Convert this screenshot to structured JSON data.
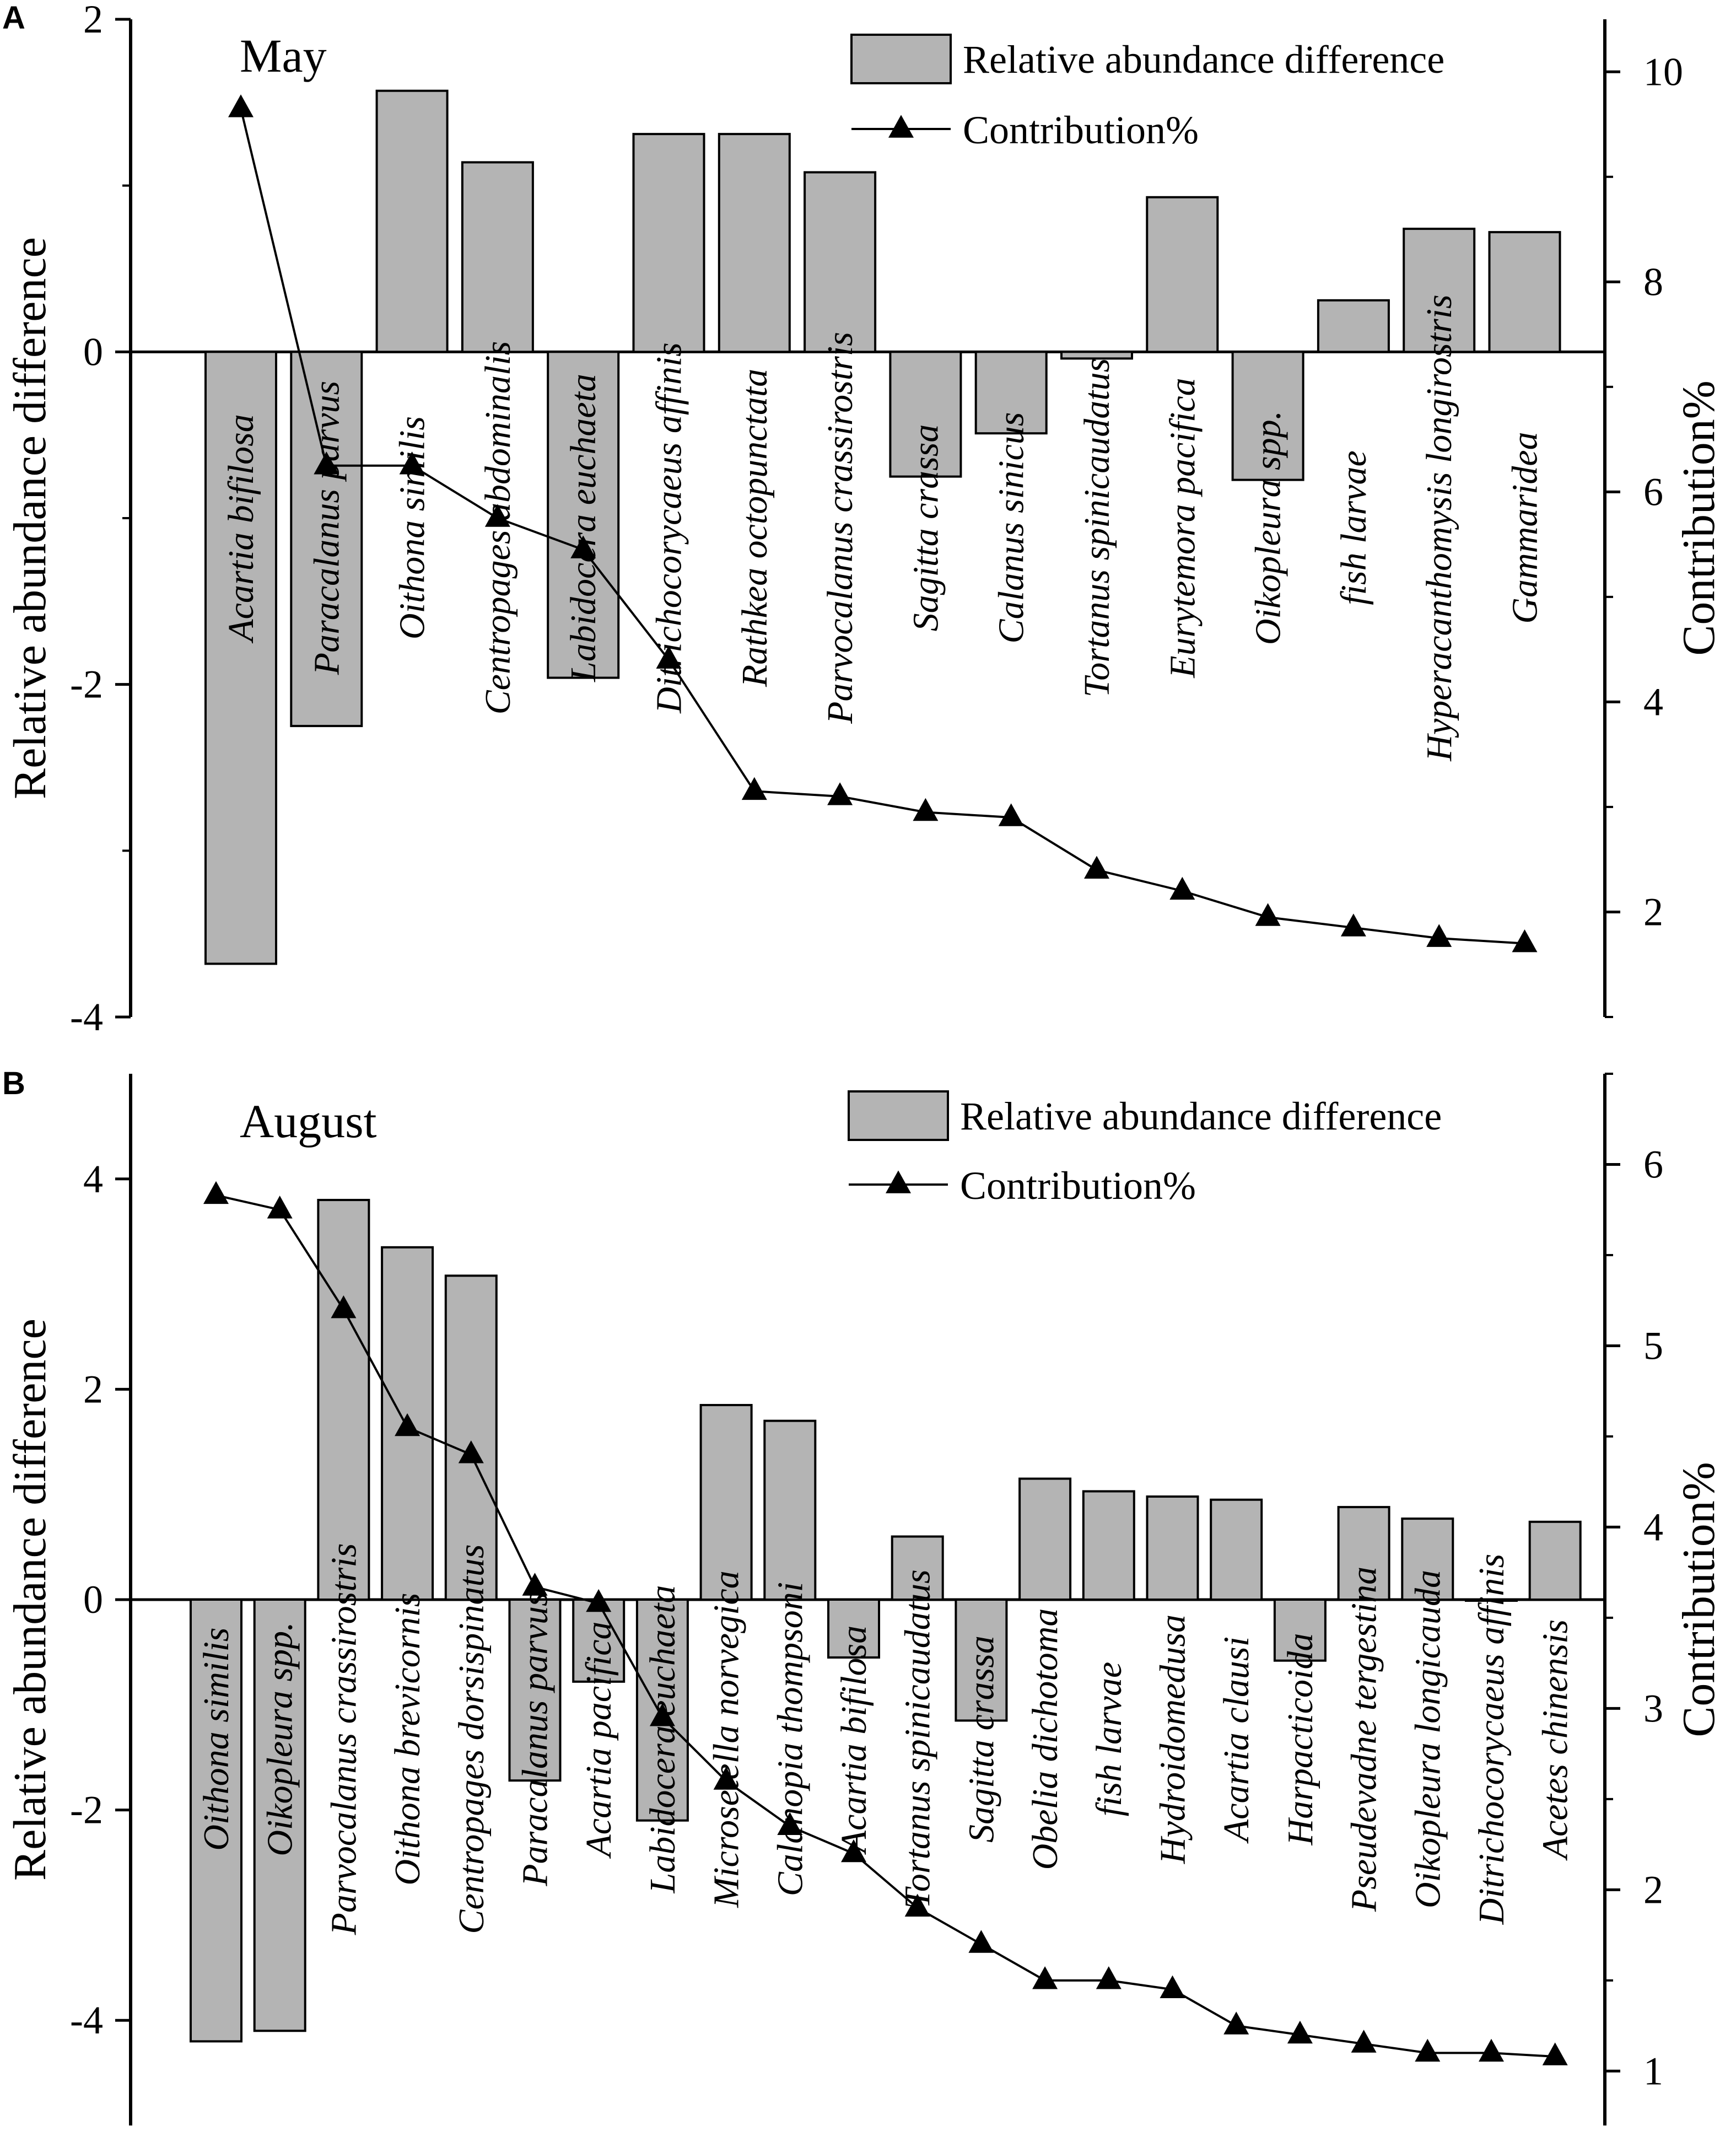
{
  "chart_data": [
    {
      "type": "bar+line",
      "panel": "A",
      "title": "May",
      "ylabel": "Relative abundance difference",
      "y2label": "Contribution%",
      "ylim": [
        -4,
        2
      ],
      "y2lim": [
        1,
        10.5
      ],
      "yticks": [
        -4,
        -2,
        0,
        2
      ],
      "y2ticks": [
        2,
        4,
        6,
        8,
        10
      ],
      "legend": {
        "bar": "Relative abundance difference",
        "line": "Contribution%",
        "position": "top-right"
      },
      "categories": [
        "Acartia bifilosa",
        "Paracalanus parvus",
        "Oithona similis",
        "Centropages abdominalis",
        "Labidocera euchaeta",
        "Ditrichocorycaeus affinis",
        "Rathkea octopunctata",
        "Parvocalanus crassirostris",
        "Sagitta crassa",
        "Calanus sinicus",
        "Tortanus spinicaudatus",
        "Eurytemora pacifica",
        "Oikopleura spp.",
        "fish larvae",
        "Hyperacanthomysis longirostris",
        "Gammaridea"
      ],
      "series": [
        {
          "name": "Relative abundance difference",
          "kind": "bar",
          "values": [
            -3.68,
            -2.25,
            1.57,
            1.14,
            -1.96,
            1.31,
            1.31,
            1.08,
            -0.75,
            -0.49,
            -0.04,
            0.93,
            -0.77,
            0.31,
            0.74,
            0.72
          ]
        },
        {
          "name": "Contribution%",
          "kind": "line",
          "marker": "triangle",
          "values": [
            9.65,
            6.25,
            6.25,
            5.75,
            5.45,
            4.4,
            3.15,
            3.1,
            2.95,
            2.9,
            2.4,
            2.2,
            1.95,
            1.85,
            1.75,
            1.7
          ]
        }
      ]
    },
    {
      "type": "bar+line",
      "panel": "B",
      "title": "August",
      "ylabel": "Relative abundance difference",
      "y2label": "Contribution%",
      "ylim": [
        -5,
        5
      ],
      "y2lim": [
        0.7,
        6.5
      ],
      "yticks": [
        -4,
        -2,
        0,
        2,
        4
      ],
      "y2ticks": [
        1,
        2,
        3,
        4,
        5,
        6
      ],
      "legend": {
        "bar": "Relative abundance difference",
        "line": "Contribution%",
        "position": "top-right"
      },
      "categories": [
        "Oithona similis",
        "Oikopleura spp.",
        "Parvocalanus crassirostris",
        "Oithona brevicornis",
        "Centropages dorsispinatus",
        "Paracalanus parvus",
        "Acartia pacifica",
        "Labidocera euchaeta",
        "Microsetella norvegica",
        "Calanopia thompsoni",
        "Acartia bifilosa",
        "Tortanus spinicaudatus",
        "Sagitta crassa",
        "Obelia dichotoma",
        "fish larvae",
        "Hydroidomedusa",
        "Acartia clausi",
        "Harpacticoida",
        "Pseudevadne tergestina",
        "Oikopleura longicauda",
        "Ditrichocorycaeus affinis",
        "Acetes chinensis"
      ],
      "series": [
        {
          "name": "Relative abundance difference",
          "kind": "bar",
          "values": [
            -4.2,
            -4.1,
            3.8,
            3.35,
            3.08,
            -1.72,
            -0.78,
            -2.1,
            1.85,
            1.7,
            -0.55,
            0.6,
            -1.15,
            1.15,
            1.03,
            0.98,
            0.95,
            -0.58,
            0.88,
            0.77,
            0.0,
            0.74
          ]
        },
        {
          "name": "Contribution%",
          "kind": "line",
          "marker": "triangle",
          "values": [
            5.83,
            5.75,
            5.2,
            4.55,
            4.4,
            3.67,
            3.58,
            2.95,
            2.6,
            2.35,
            2.2,
            1.9,
            1.7,
            1.5,
            1.5,
            1.45,
            1.25,
            1.2,
            1.15,
            1.1,
            1.1,
            1.08
          ]
        }
      ]
    }
  ]
}
